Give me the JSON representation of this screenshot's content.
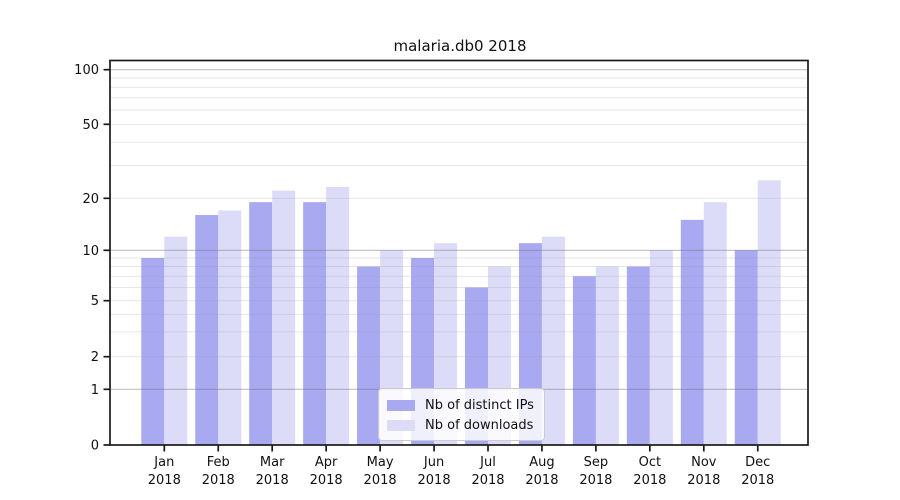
{
  "title": "malaria.db0 2018",
  "chart_data": {
    "type": "bar",
    "title": "malaria.db0 2018",
    "categories": [
      "Jan 2018",
      "Feb 2018",
      "Mar 2018",
      "Apr 2018",
      "May 2018",
      "Jun 2018",
      "Jul 2018",
      "Aug 2018",
      "Sep 2018",
      "Oct 2018",
      "Nov 2018",
      "Dec 2018"
    ],
    "series": [
      {
        "name": "Nb of distinct IPs",
        "color": "#a9a9f2",
        "values": [
          9,
          16,
          19,
          19,
          8,
          9,
          6,
          11,
          7,
          8,
          15,
          10
        ]
      },
      {
        "name": "Nb of downloads",
        "color": "#dcdcf9",
        "values": [
          12,
          17,
          22,
          23,
          10,
          11,
          8,
          12,
          8,
          10,
          19,
          25
        ]
      }
    ],
    "y_axis": {
      "tick_labels": [
        0,
        1,
        2,
        5,
        10,
        20,
        50,
        100
      ],
      "scale": "linear below 1, logarithmic above 1",
      "major_gridlines": [
        1,
        10,
        100
      ],
      "minor_gridlines": [
        2,
        3,
        4,
        5,
        6,
        7,
        8,
        9,
        20,
        30,
        40,
        50,
        60,
        70,
        80,
        90
      ],
      "range": [
        0,
        100
      ]
    },
    "legend_position": "lower center",
    "grid": true,
    "colors": {
      "bar_distinct_ips": "#a9a9f2",
      "bar_downloads": "#dcdcf9",
      "axis_frame": "#1a1a1a",
      "major_grid": "#bdbdbd",
      "minor_grid": "#ebebeb"
    }
  }
}
